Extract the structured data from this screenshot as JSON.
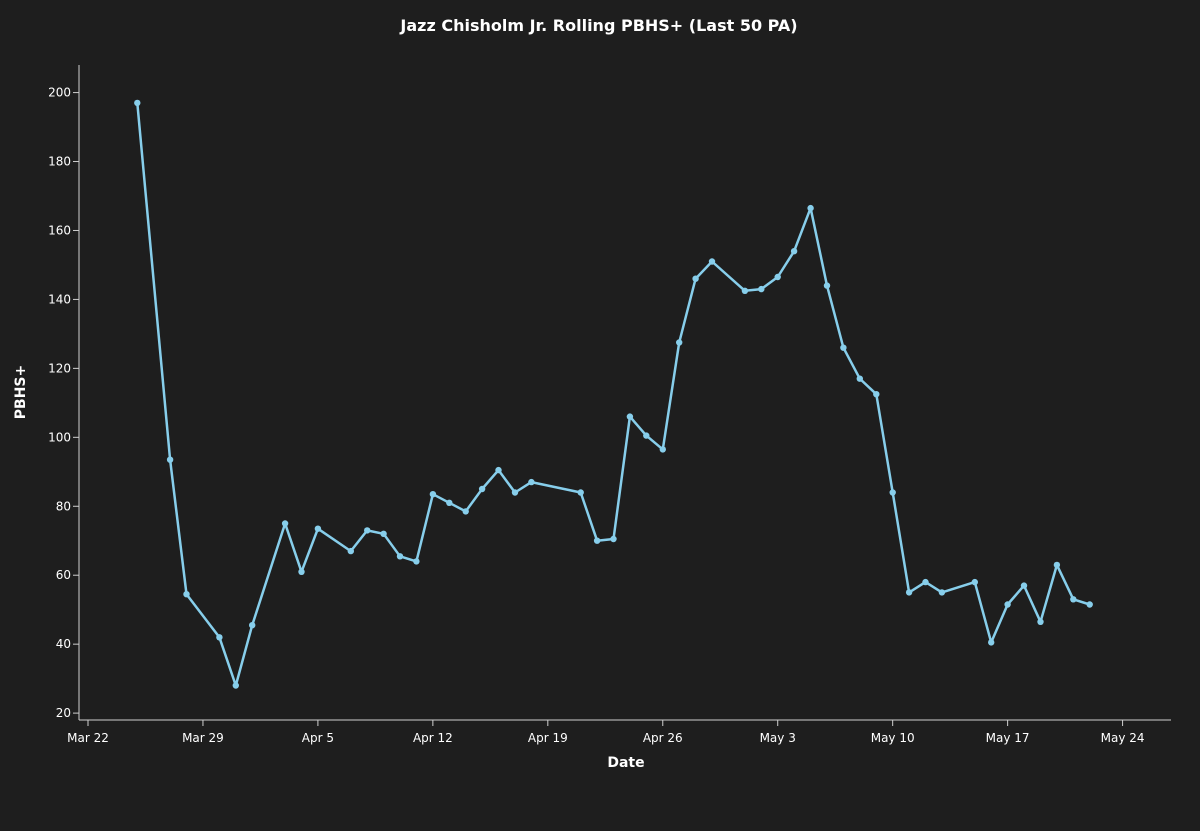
{
  "chart_data": {
    "type": "line",
    "title": "Jazz Chisholm Jr. Rolling PBHS+ (Last 50 PA)",
    "xlabel": "Date",
    "ylabel": "PBHS+",
    "x_tick_labels": [
      "Mar 22",
      "Mar 29",
      "Apr 5",
      "Apr 12",
      "Apr 19",
      "Apr 26",
      "May 3",
      "May 10",
      "May 17",
      "May 24"
    ],
    "x_ticks": [
      "2025-03-22",
      "2025-03-29",
      "2025-04-05",
      "2025-04-12",
      "2025-04-19",
      "2025-04-26",
      "2025-05-03",
      "2025-05-10",
      "2025-05-17",
      "2025-05-24"
    ],
    "xlim": [
      "2025-03-22",
      "2025-05-25"
    ],
    "y_ticks": [
      20,
      40,
      60,
      80,
      100,
      120,
      140,
      160,
      180,
      200
    ],
    "ylim": [
      18,
      208
    ],
    "grid": false,
    "line_color": "#87ceeb",
    "x": [
      "2025-03-25",
      "2025-03-27",
      "2025-03-28",
      "2025-03-30",
      "2025-03-31",
      "2025-04-01",
      "2025-04-03",
      "2025-04-04",
      "2025-04-05",
      "2025-04-07",
      "2025-04-08",
      "2025-04-09",
      "2025-04-10",
      "2025-04-11",
      "2025-04-12",
      "2025-04-13",
      "2025-04-14",
      "2025-04-15",
      "2025-04-16",
      "2025-04-17",
      "2025-04-18",
      "2025-04-21",
      "2025-04-22",
      "2025-04-23",
      "2025-04-24",
      "2025-04-25",
      "2025-04-26",
      "2025-04-27",
      "2025-04-28",
      "2025-04-29",
      "2025-05-01",
      "2025-05-02",
      "2025-05-03",
      "2025-05-04",
      "2025-05-05",
      "2025-05-06",
      "2025-05-07",
      "2025-05-08",
      "2025-05-09",
      "2025-05-10",
      "2025-05-11",
      "2025-05-12",
      "2025-05-13",
      "2025-05-15",
      "2025-05-16",
      "2025-05-17",
      "2025-05-18",
      "2025-05-19",
      "2025-05-20",
      "2025-05-21",
      "2025-05-22"
    ],
    "values": [
      197,
      93.5,
      54.5,
      42,
      28,
      45.5,
      75,
      61,
      73.5,
      67,
      73,
      72,
      65.5,
      64,
      83.5,
      81,
      78.5,
      85,
      90.5,
      84,
      87,
      84,
      70,
      70.5,
      106,
      100.5,
      96.5,
      127.5,
      146,
      151,
      142.5,
      143,
      146.5,
      154,
      166.5,
      144,
      126,
      117,
      112.5,
      84,
      55,
      58,
      55,
      58,
      40.5,
      51.5,
      57,
      46.5,
      63,
      53,
      51.5
    ]
  }
}
